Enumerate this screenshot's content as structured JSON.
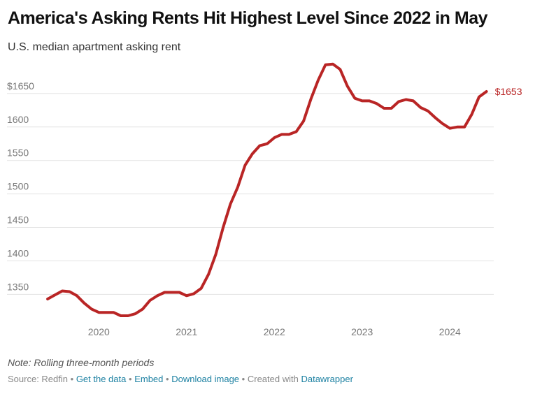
{
  "title": "America's Asking Rents Hit Highest Level Since 2022 in May",
  "subtitle": "U.S. median apartment asking rent",
  "note": "Note: Rolling three-month periods",
  "footer": {
    "source": "Source: Redfin",
    "get_data": "Get the data",
    "embed": "Embed",
    "download": "Download image",
    "created_with": "Created with",
    "datawrapper": "Datawrapper",
    "separator": "•"
  },
  "colors": {
    "line": "#b92525",
    "grid": "#e2e2e2",
    "axis_text": "#777777",
    "link": "#1d81a2"
  },
  "chart_data": {
    "type": "line",
    "title": "America's Asking Rents Hit Highest Level Since 2022 in May",
    "subtitle": "U.S. median apartment asking rent",
    "xlabel": "",
    "ylabel": "",
    "ylim": [
      1318,
      1700
    ],
    "xlim": [
      2019.4,
      2024.5
    ],
    "grid": "horizontal",
    "y_ticks": [
      {
        "value": 1350,
        "label": "1350"
      },
      {
        "value": 1400,
        "label": "1400"
      },
      {
        "value": 1450,
        "label": "1450"
      },
      {
        "value": 1500,
        "label": "1500"
      },
      {
        "value": 1550,
        "label": "1550"
      },
      {
        "value": 1600,
        "label": "1600"
      },
      {
        "value": 1650,
        "label": "$1650"
      }
    ],
    "x_ticks": [
      {
        "value": 2020,
        "label": "2020"
      },
      {
        "value": 2021,
        "label": "2021"
      },
      {
        "value": 2022,
        "label": "2022"
      },
      {
        "value": 2023,
        "label": "2023"
      },
      {
        "value": 2024,
        "label": "2024"
      }
    ],
    "end_label": "$1653",
    "series": [
      {
        "color": "#b92525",
        "x": [
          2019.417,
          2019.5,
          2019.583,
          2019.667,
          2019.75,
          2019.833,
          2019.917,
          2020.0,
          2020.083,
          2020.167,
          2020.25,
          2020.333,
          2020.417,
          2020.5,
          2020.583,
          2020.667,
          2020.75,
          2020.833,
          2020.917,
          2021.0,
          2021.083,
          2021.167,
          2021.25,
          2021.333,
          2021.417,
          2021.5,
          2021.583,
          2021.667,
          2021.75,
          2021.833,
          2021.917,
          2022.0,
          2022.083,
          2022.167,
          2022.25,
          2022.333,
          2022.417,
          2022.5,
          2022.583,
          2022.667,
          2022.75,
          2022.833,
          2022.917,
          2023.0,
          2023.083,
          2023.167,
          2023.25,
          2023.333,
          2023.417,
          2023.5,
          2023.583,
          2023.667,
          2023.75,
          2023.833,
          2023.917,
          2024.0,
          2024.083,
          2024.167,
          2024.25,
          2024.333,
          2024.417
        ],
        "values": [
          1343,
          1349,
          1355,
          1354,
          1348,
          1337,
          1328,
          1323,
          1323,
          1323,
          1318,
          1318,
          1321,
          1328,
          1341,
          1348,
          1353,
          1353,
          1353,
          1348,
          1351,
          1359,
          1380,
          1410,
          1450,
          1485,
          1510,
          1543,
          1560,
          1572,
          1575,
          1584,
          1589,
          1589,
          1593,
          1609,
          1642,
          1670,
          1693,
          1694,
          1686,
          1661,
          1643,
          1639,
          1639,
          1635,
          1628,
          1628,
          1638,
          1641,
          1639,
          1629,
          1624,
          1614,
          1605,
          1598,
          1600,
          1600,
          1619,
          1645,
          1653
        ]
      }
    ]
  }
}
